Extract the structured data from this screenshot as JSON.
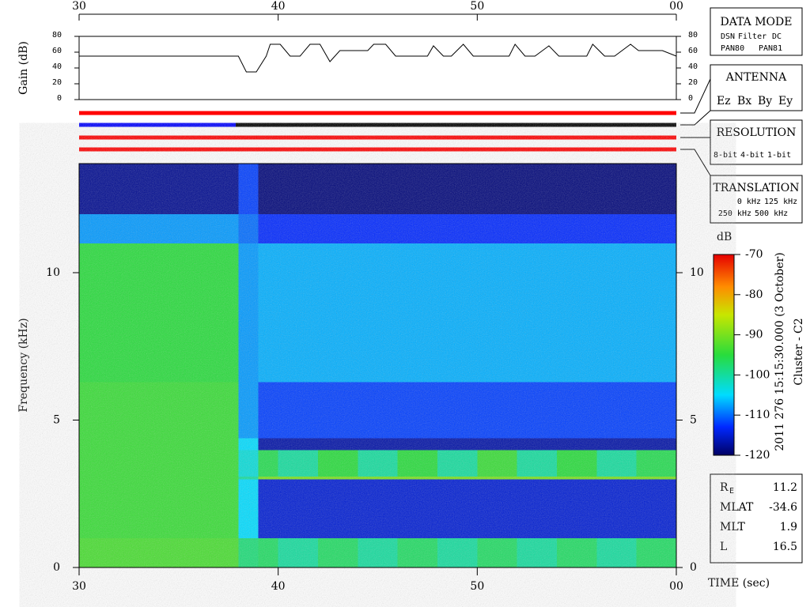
{
  "chart_data": [
    {
      "type": "line",
      "ylabel": "Gain (dB)",
      "x": [
        30,
        38,
        38.4,
        38.9,
        39.4,
        39.6,
        40.1,
        40.6,
        41.1,
        41.6,
        42.1,
        42.6,
        43.1,
        44.5,
        44.8,
        45.4,
        45.9,
        47.5,
        47.8,
        48.3,
        48.7,
        49.3,
        49.8,
        51.6,
        51.9,
        52.4,
        52.9,
        53.6,
        54.1,
        55.5,
        55.8,
        56.4,
        56.9,
        57.7,
        58.1,
        58.4,
        59.3,
        60
      ],
      "values": [
        55,
        55,
        35,
        35,
        55,
        70,
        70,
        55,
        55,
        70,
        70,
        48,
        62,
        62,
        70,
        70,
        55,
        55,
        68,
        55,
        55,
        70,
        55,
        55,
        70,
        55,
        55,
        68,
        55,
        55,
        70,
        55,
        55,
        70,
        62,
        62,
        62,
        55
      ],
      "color": "#000000",
      "xlim": [
        30,
        60
      ],
      "xticks": [
        30,
        40,
        50,
        {
          "value": 60,
          "label": "00"
        }
      ],
      "ylim": [
        0,
        80
      ],
      "yticks": [
        0,
        20,
        40,
        60,
        80
      ]
    },
    {
      "type": "heatmap",
      "ylabel": "Frequency (kHz)",
      "xlabel": "TIME (sec)",
      "colorbar_label": "dB",
      "x_edges": [
        30,
        38,
        39,
        40,
        42,
        44,
        46,
        48,
        50,
        52,
        54,
        56,
        58,
        60
      ],
      "y_edges": [
        0,
        1,
        3,
        3.1,
        4,
        4.4,
        6.3,
        11,
        12,
        13.7
      ],
      "z": [
        [
          -93,
          -98,
          -97,
          -100,
          -97,
          -100,
          -97,
          -100,
          -97,
          -100,
          -97,
          -100,
          -97
        ],
        [
          -94,
          -105,
          -115,
          -115,
          -115,
          -115,
          -115,
          -115,
          -115,
          -115,
          -115,
          -115,
          -115
        ],
        [
          -94,
          -100,
          -90,
          -90,
          -90,
          -90,
          -90,
          -90,
          -90,
          -90,
          -90,
          -90,
          -90
        ],
        [
          -94,
          -103,
          -96,
          -100,
          -95,
          -100,
          -95,
          -100,
          -94,
          -100,
          -95,
          -100,
          -96
        ],
        [
          -94,
          -105,
          -117,
          -117,
          -117,
          -117,
          -117,
          -117,
          -117,
          -117,
          -117,
          -117,
          -117
        ],
        [
          -94,
          -108,
          -112,
          -112,
          -112,
          -112,
          -112,
          -112,
          -112,
          -112,
          -112,
          -112,
          -112
        ],
        [
          -95,
          -108,
          -107,
          -107,
          -107,
          -107,
          -107,
          -107,
          -107,
          -107,
          -107,
          -107,
          -107
        ],
        [
          -108,
          -110,
          -113,
          -113,
          -113,
          -113,
          -113,
          -113,
          -113,
          -113,
          -113,
          -113,
          -113
        ],
        [
          -118,
          -112,
          -119,
          -119,
          -119,
          -119,
          -119,
          -119,
          -119,
          -119,
          -119,
          -119,
          -119
        ]
      ],
      "clim": [
        -120,
        -70
      ],
      "cticks": [
        -70,
        -80,
        -90,
        -100,
        -110,
        -120
      ],
      "xlim": [
        30,
        60
      ],
      "xticks": [
        30,
        40,
        50,
        {
          "value": 60,
          "label": "00"
        }
      ],
      "ylim": [
        0,
        13.7
      ],
      "yticks": [
        0,
        5,
        10
      ]
    }
  ],
  "panels": {
    "data_mode": {
      "title": "DATA MODE",
      "items": [
        "DSN",
        "Filter",
        "DC",
        "PAN80",
        "PAN81"
      ]
    },
    "antenna": {
      "title": "ANTENNA",
      "items": [
        "Ez",
        "Bx",
        "By",
        "Ey"
      ]
    },
    "resolution": {
      "title": "RESOLUTION",
      "items": [
        "8-bit",
        "4-bit",
        "1-bit"
      ]
    },
    "translation": {
      "title": "TRANSLATION",
      "items": [
        "0 kHz",
        "125 kHz",
        "250 kHz",
        "500 kHz"
      ]
    }
  },
  "side_title": "2011 276 15:15:30.000 (3 October)",
  "spacecraft": "Cluster - C2",
  "info": {
    "rows": [
      [
        "R",
        "E",
        "11.2"
      ],
      [
        "MLAT",
        "",
        "-34.6"
      ],
      [
        "MLT",
        "",
        "1.9"
      ],
      [
        "L",
        "",
        "16.5"
      ]
    ]
  }
}
